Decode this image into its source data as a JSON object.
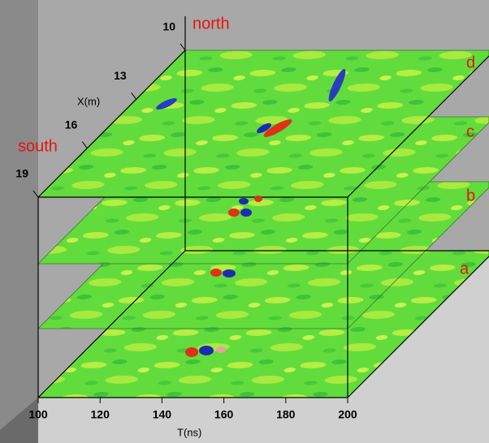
{
  "plot": {
    "time_axis": {
      "label": "T(ns)",
      "ticks": [
        100,
        120,
        140,
        160,
        180,
        200
      ]
    },
    "position_axis": {
      "label": "X(m)",
      "ticks": [
        10,
        13,
        16,
        19
      ]
    },
    "direction_labels": {
      "north": "north",
      "south": "south"
    },
    "slices": [
      "a",
      "b",
      "c",
      "d"
    ]
  }
}
